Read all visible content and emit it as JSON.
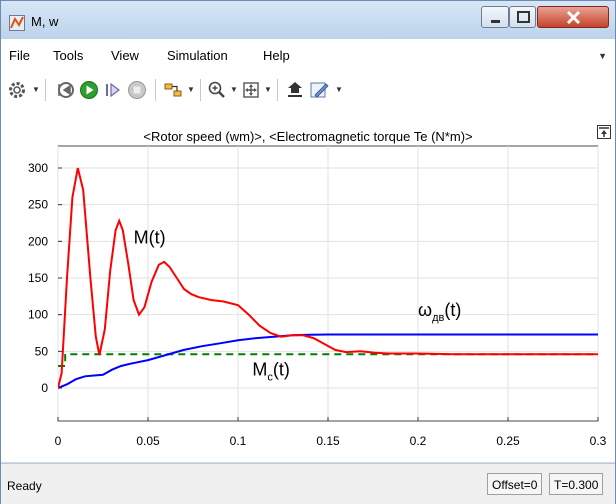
{
  "window": {
    "title": "M, w"
  },
  "menu": [
    "File",
    "Tools",
    "View",
    "Simulation",
    "Help"
  ],
  "toolbar": {
    "icons": [
      "gear-icon",
      "step-back-icon",
      "run-icon",
      "step-forward-icon",
      "stop-icon",
      "signal-selector-icon",
      "zoom-icon",
      "fit-to-view-icon",
      "highlight-icon",
      "style-icon"
    ]
  },
  "status": {
    "text": "Ready",
    "offset": "Offset=0",
    "time": "T=0.300"
  },
  "chart_data": {
    "type": "line",
    "title": "<Rotor speed (wm)>, <Electromagnetic torque Te (N*m)>",
    "xlim": [
      0,
      0.3
    ],
    "ylim": [
      -45,
      330
    ],
    "x_ticks": [
      "0",
      "0.05",
      "0.1",
      "0.15",
      "0.2",
      "0.25",
      "0.3"
    ],
    "y_ticks": [
      "0",
      "50",
      "100",
      "150",
      "200",
      "250",
      "300"
    ],
    "grid": true,
    "annotations": [
      {
        "text": "M(t)",
        "series": "red",
        "x": 0.042,
        "y": 197
      },
      {
        "text": "ω",
        "subscript": "дв",
        "suffix": "(t)",
        "series": "blue",
        "x": 0.2,
        "y": 98
      },
      {
        "text": "M",
        "subscript": "c",
        "suffix": "(t)",
        "series": "green",
        "x": 0.108,
        "y": 17
      }
    ],
    "series": [
      {
        "color": "#ff0000",
        "style": "solid",
        "points": [
          [
            0,
            0
          ],
          [
            0.002,
            20
          ],
          [
            0.005,
            150
          ],
          [
            0.008,
            260
          ],
          [
            0.011,
            300
          ],
          [
            0.014,
            270
          ],
          [
            0.018,
            150
          ],
          [
            0.021,
            70
          ],
          [
            0.023,
            45
          ],
          [
            0.026,
            80
          ],
          [
            0.029,
            160
          ],
          [
            0.032,
            215
          ],
          [
            0.034,
            228
          ],
          [
            0.036,
            215
          ],
          [
            0.039,
            170
          ],
          [
            0.042,
            120
          ],
          [
            0.045,
            100
          ],
          [
            0.048,
            110
          ],
          [
            0.052,
            145
          ],
          [
            0.056,
            168
          ],
          [
            0.059,
            172
          ],
          [
            0.062,
            165
          ],
          [
            0.066,
            150
          ],
          [
            0.07,
            135
          ],
          [
            0.074,
            128
          ],
          [
            0.078,
            124
          ],
          [
            0.085,
            120
          ],
          [
            0.092,
            118
          ],
          [
            0.1,
            113
          ],
          [
            0.106,
            100
          ],
          [
            0.112,
            85
          ],
          [
            0.118,
            75
          ],
          [
            0.124,
            70
          ],
          [
            0.13,
            72
          ],
          [
            0.136,
            72
          ],
          [
            0.142,
            68
          ],
          [
            0.148,
            60
          ],
          [
            0.154,
            52
          ],
          [
            0.16,
            49
          ],
          [
            0.168,
            50
          ],
          [
            0.176,
            48
          ],
          [
            0.184,
            47
          ],
          [
            0.192,
            47
          ],
          [
            0.2,
            47
          ],
          [
            0.22,
            46
          ],
          [
            0.25,
            46
          ],
          [
            0.27,
            46
          ],
          [
            0.3,
            46
          ]
        ]
      },
      {
        "color": "#0000ff",
        "style": "solid",
        "points": [
          [
            0,
            0
          ],
          [
            0.005,
            5
          ],
          [
            0.01,
            12
          ],
          [
            0.015,
            16
          ],
          [
            0.02,
            17
          ],
          [
            0.025,
            18
          ],
          [
            0.03,
            25
          ],
          [
            0.035,
            30
          ],
          [
            0.04,
            33
          ],
          [
            0.05,
            38
          ],
          [
            0.06,
            45
          ],
          [
            0.07,
            52
          ],
          [
            0.08,
            57
          ],
          [
            0.09,
            61
          ],
          [
            0.1,
            65
          ],
          [
            0.11,
            68
          ],
          [
            0.12,
            70
          ],
          [
            0.13,
            72
          ],
          [
            0.14,
            72.5
          ],
          [
            0.15,
            73
          ],
          [
            0.16,
            73
          ],
          [
            0.18,
            73
          ],
          [
            0.2,
            73
          ],
          [
            0.25,
            73
          ],
          [
            0.3,
            73
          ]
        ]
      },
      {
        "color": "#008000",
        "style": "dashed",
        "points": [
          [
            0,
            30
          ],
          [
            0.004,
            30
          ],
          [
            0.004,
            45
          ],
          [
            0.006,
            45
          ],
          [
            0.006,
            46
          ],
          [
            0.3,
            46
          ]
        ]
      }
    ]
  }
}
